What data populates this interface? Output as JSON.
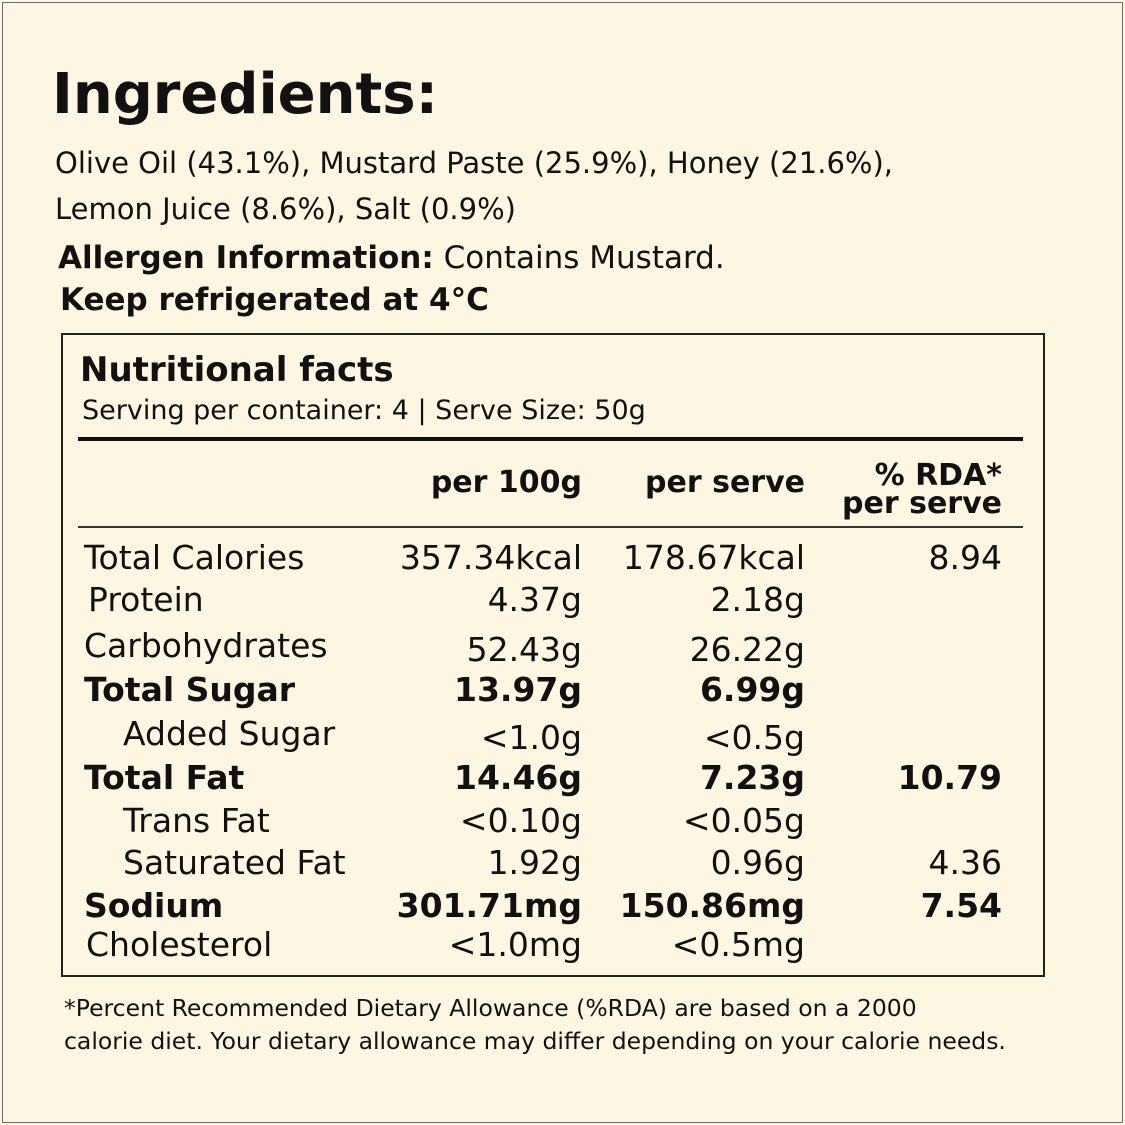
{
  "ingredients": {
    "title": "Ingredients:",
    "line1": "Olive Oil (43.1%), Mustard Paste (25.9%), Honey (21.6%),",
    "line2": "Lemon Juice (8.6%), Salt (0.9%)"
  },
  "allergen": {
    "label": "Allergen Information:",
    "text": " Contains Mustard."
  },
  "storage": "Keep refrigerated at 4°C",
  "nutrition": {
    "title": "Nutritional facts",
    "serving": "Serving per container: 4 | Serve Size: 50g",
    "headers": {
      "per100": "per 100g",
      "perserve": "per serve",
      "rda_line1": "% RDA*",
      "rda_line2": "per serve"
    },
    "rows": [
      {
        "label": "Total Calories",
        "per100": "357.34kcal",
        "perserve": "178.67kcal",
        "rda": "8.94"
      },
      {
        "label": "Protein",
        "per100": "4.37g",
        "perserve": "2.18g",
        "rda": ""
      },
      {
        "label": "Carbohydrates",
        "per100": "52.43g",
        "perserve": "26.22g",
        "rda": ""
      },
      {
        "label": "Total Sugar",
        "per100": "13.97g",
        "perserve": "6.99g",
        "rda": ""
      },
      {
        "label": "Added Sugar",
        "per100": "<1.0g",
        "perserve": "<0.5g",
        "rda": ""
      },
      {
        "label": "Total Fat",
        "per100": "14.46g",
        "perserve": "7.23g",
        "rda": "10.79"
      },
      {
        "label": "Trans Fat",
        "per100": "<0.10g",
        "perserve": "<0.05g",
        "rda": ""
      },
      {
        "label": "Saturated Fat",
        "per100": "1.92g",
        "perserve": "0.96g",
        "rda": "4.36"
      },
      {
        "label": "Sodium",
        "per100": "301.71mg",
        "perserve": "150.86mg",
        "rda": "7.54"
      },
      {
        "label": "Cholesterol",
        "per100": "<1.0mg",
        "perserve": "<0.5mg",
        "rda": ""
      }
    ]
  },
  "footnote": {
    "line1": "*Percent Recommended Dietary Allowance (%RDA) are based on a 2000",
    "line2": "calorie diet. Your dietary allowance may differ depending on your calorie needs."
  }
}
